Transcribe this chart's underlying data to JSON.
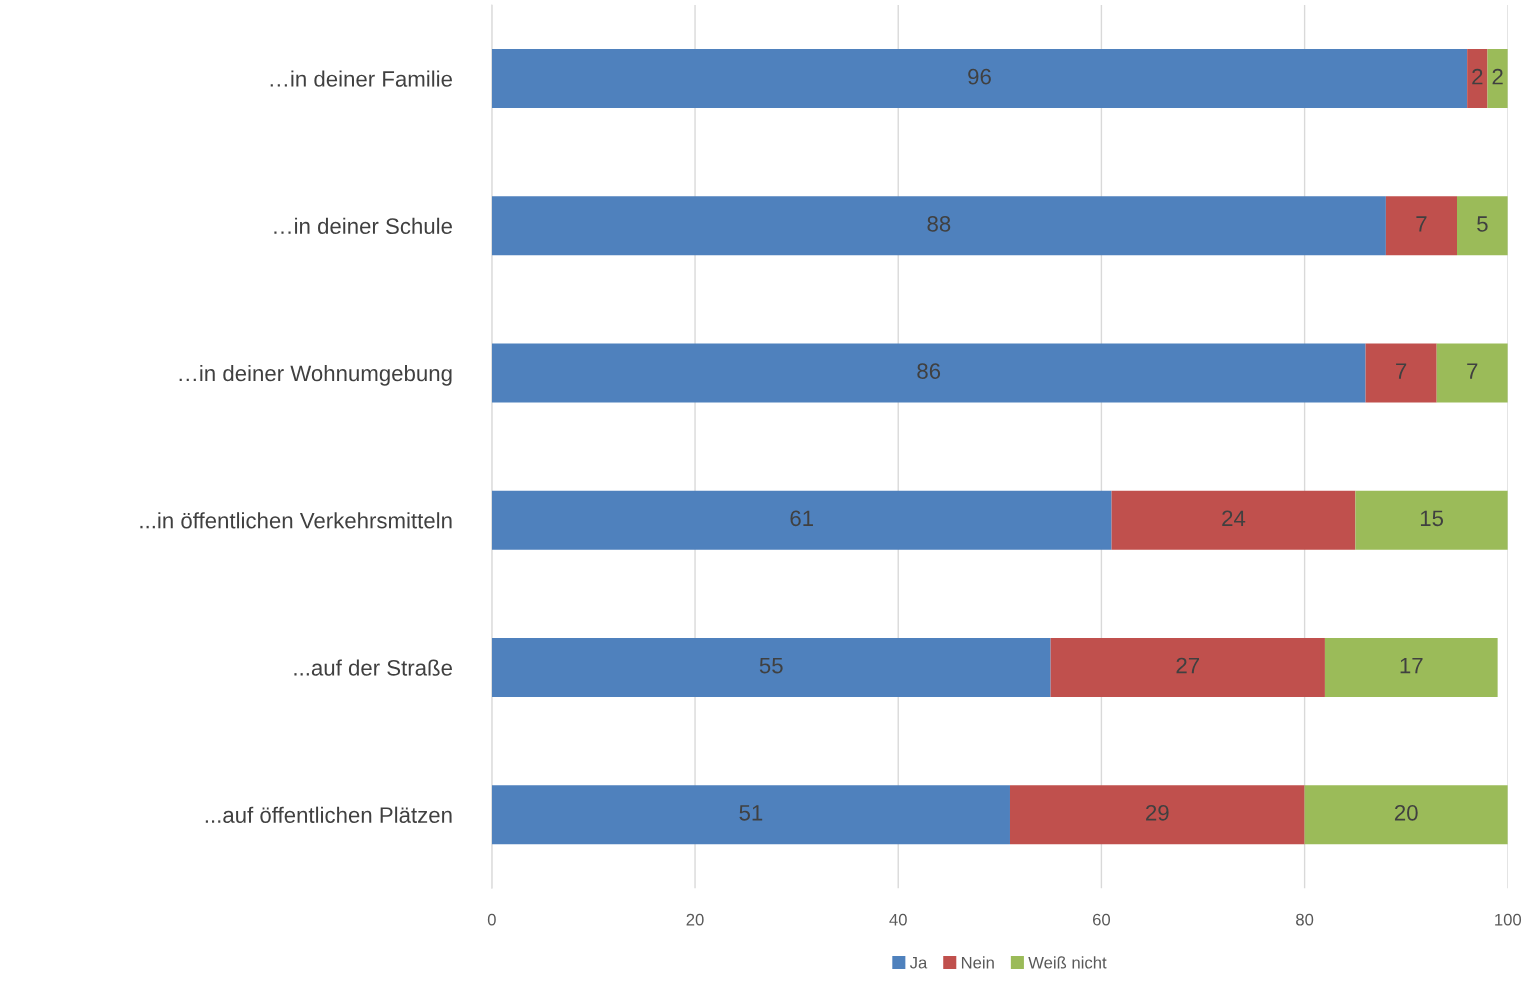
{
  "chart_data": {
    "type": "bar",
    "orientation": "horizontal",
    "stacked": true,
    "categories": [
      "…in deiner Familie",
      "…in deiner Schule",
      "…in deiner Wohnumgebung",
      "...in öffentlichen Verkehrsmitteln",
      "...auf der Straße",
      "...auf öffentlichen Plätzen"
    ],
    "series": [
      {
        "name": "Ja",
        "color": "#4f81bd",
        "values": [
          96,
          88,
          86,
          61,
          55,
          51
        ]
      },
      {
        "name": "Nein",
        "color": "#c0504d",
        "values": [
          2,
          7,
          7,
          24,
          27,
          29
        ]
      },
      {
        "name": "Weiß nicht",
        "color": "#9bbb59",
        "values": [
          2,
          5,
          7,
          15,
          17,
          20
        ]
      }
    ],
    "xlim": [
      0,
      100
    ],
    "xticks": [
      0,
      20,
      40,
      60,
      80,
      100
    ],
    "grid": "x",
    "legend": "bottom",
    "data_labels": true
  }
}
